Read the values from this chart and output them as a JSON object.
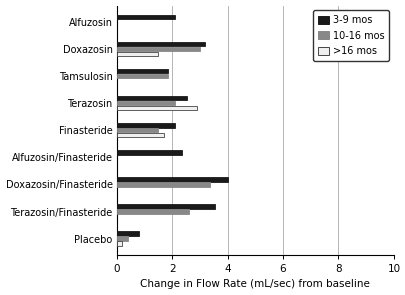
{
  "categories": [
    "Alfuzosin",
    "Doxazosin",
    "Tamsulosin",
    "Terazosin",
    "Finasteride",
    "Alfuzosin/Finasteride",
    "Doxazosin/Finasteride",
    "Terazosin/Finasteride",
    "Placebo"
  ],
  "series": {
    "3-9 mos": [
      2.1,
      3.2,
      1.85,
      2.55,
      2.1,
      2.35,
      4.0,
      3.55,
      0.8
    ],
    "10-16 mos": [
      null,
      3.0,
      1.85,
      2.1,
      1.5,
      null,
      3.35,
      2.6,
      0.4
    ],
    ">16 mos": [
      null,
      1.5,
      null,
      2.9,
      1.7,
      null,
      null,
      null,
      0.2
    ]
  },
  "colors": {
    "3-9 mos": "#1a1a1a",
    "10-16 mos": "#888888",
    ">16 mos": "#f0f0f0"
  },
  "edgecolors": {
    "3-9 mos": "#1a1a1a",
    "10-16 mos": "#888888",
    ">16 mos": "#444444"
  },
  "xlabel": "Change in Flow Rate (mL/sec) from baseline",
  "xlim": [
    0,
    10
  ],
  "xticks": [
    0,
    2,
    4,
    6,
    8,
    10
  ],
  "bar_height": 0.18,
  "figsize": [
    4.06,
    2.95
  ],
  "dpi": 100,
  "legend_loc": "upper right",
  "gridline_color": "#aaaaaa",
  "gridline_positions": [
    2,
    4,
    6,
    8,
    10
  ]
}
